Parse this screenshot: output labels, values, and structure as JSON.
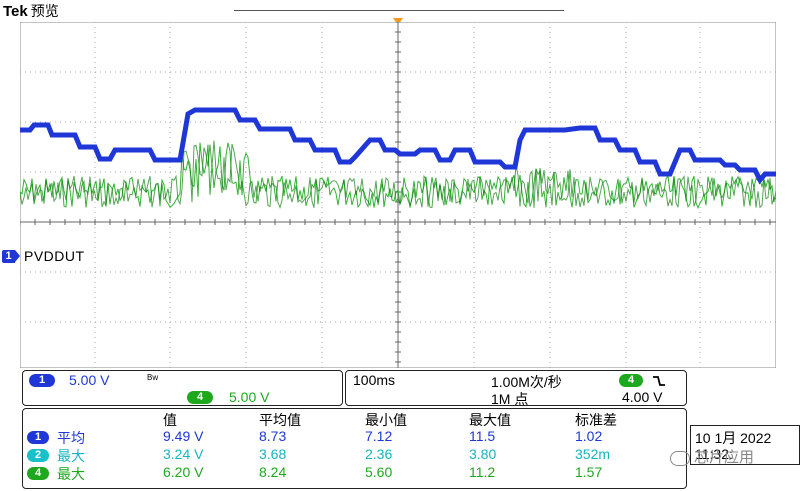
{
  "header": {
    "brand": "Tek",
    "mode": "预览"
  },
  "channel_label": {
    "number": "1",
    "name": "PVDDUT"
  },
  "vertical": {
    "ch1": {
      "number": "1",
      "scale": "5.00 V",
      "bw_mark": "Bw"
    },
    "ch4": {
      "number": "4",
      "scale": "5.00 V"
    }
  },
  "timebase": {
    "scale": "100ms",
    "sample_rate": "1.00M次/秒",
    "record_length": "1M 点",
    "trigger_source": "4",
    "trigger_slope_icon": "falling-edge-icon",
    "trigger_level": "4.00 V"
  },
  "measurements": {
    "headers": [
      "值",
      "平均值",
      "最小值",
      "最大值",
      "标准差"
    ],
    "rows": [
      {
        "channel": "1",
        "type": "平均",
        "color": "#1e37d6",
        "values": [
          "9.49 V",
          "8.73",
          "7.12",
          "11.5",
          "1.02"
        ]
      },
      {
        "channel": "2",
        "type": "最大",
        "color": "#16b4c0",
        "values": [
          "3.24 V",
          "3.68",
          "2.36",
          "3.80",
          "352m"
        ]
      },
      {
        "channel": "4",
        "type": "最大",
        "color": "#1ea81e",
        "values": [
          "6.20 V",
          "8.24",
          "5.60",
          "11.2",
          "1.57"
        ]
      }
    ]
  },
  "datetime": {
    "date": "10 1月  2022",
    "time": "11:32:"
  },
  "watermark": {
    "text": "芯片应用"
  },
  "colors": {
    "ch1": "#1e37d6",
    "ch2": "#16b4c0",
    "ch4": "#1ea81e",
    "trigger": "#f39a1e"
  }
}
